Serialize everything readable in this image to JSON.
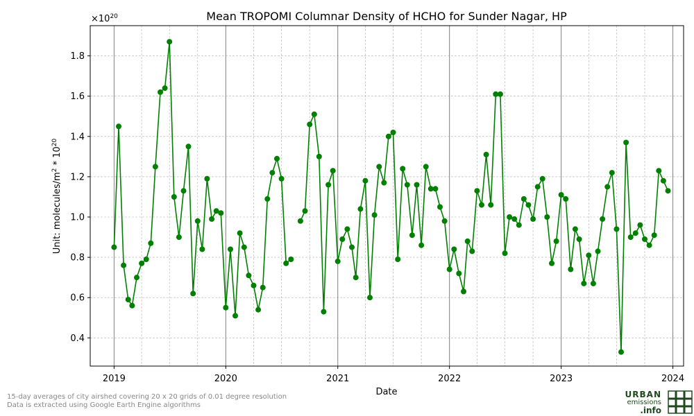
{
  "chart_data": {
    "type": "line",
    "title": "Mean TROPOMI Columnar Density of HCHO for Sunder Nagar, HP",
    "xlabel": "Date",
    "ylabel_main": "Unit: molecules/m",
    "ylabel_sup1": "2",
    "ylabel_mid": " * 10",
    "ylabel_sup2": "20",
    "offset_base": "×10",
    "offset_exp": "20",
    "xlim": [
      "2018-10-15",
      "2024-02-05"
    ],
    "ylim": [
      0.26,
      1.95
    ],
    "xticks": [
      {
        "date": "2019-01-01",
        "label": "2019"
      },
      {
        "date": "2020-01-01",
        "label": "2020"
      },
      {
        "date": "2021-01-01",
        "label": "2021"
      },
      {
        "date": "2022-01-01",
        "label": "2022"
      },
      {
        "date": "2023-01-01",
        "label": "2023"
      },
      {
        "date": "2024-01-01",
        "label": "2024"
      }
    ],
    "yticks": [
      {
        "value": 0.4,
        "label": "0.4"
      },
      {
        "value": 0.6,
        "label": "0.6"
      },
      {
        "value": 0.8,
        "label": "0.8"
      },
      {
        "value": 1.0,
        "label": "1.0"
      },
      {
        "value": 1.2,
        "label": "1.2"
      },
      {
        "value": 1.4,
        "label": "1.4"
      },
      {
        "value": 1.6,
        "label": "1.6"
      },
      {
        "value": 1.8,
        "label": "1.8"
      }
    ],
    "grid": true,
    "color": "#008000",
    "series": [
      {
        "segments": [
          [
            [
              "2019-01-01",
              0.85
            ],
            [
              "2019-01-16",
              1.45
            ],
            [
              "2019-02-01",
              0.76
            ],
            [
              "2019-02-16",
              0.59
            ],
            [
              "2019-03-01",
              0.56
            ],
            [
              "2019-03-16",
              0.7
            ],
            [
              "2019-04-01",
              0.77
            ],
            [
              "2019-04-16",
              0.79
            ],
            [
              "2019-05-01",
              0.87
            ],
            [
              "2019-05-16",
              1.25
            ],
            [
              "2019-06-01",
              1.62
            ],
            [
              "2019-06-16",
              1.64
            ],
            [
              "2019-07-01",
              1.87
            ],
            [
              "2019-07-16",
              1.1
            ],
            [
              "2019-08-01",
              0.9
            ],
            [
              "2019-08-16",
              1.13
            ],
            [
              "2019-09-01",
              1.35
            ],
            [
              "2019-09-16",
              0.62
            ],
            [
              "2019-10-01",
              0.98
            ],
            [
              "2019-10-16",
              0.84
            ],
            [
              "2019-11-01",
              1.19
            ],
            [
              "2019-11-16",
              0.99
            ],
            [
              "2019-12-01",
              1.03
            ],
            [
              "2019-12-16",
              1.02
            ],
            [
              "2020-01-01",
              0.55
            ],
            [
              "2020-01-16",
              0.84
            ],
            [
              "2020-02-01",
              0.51
            ],
            [
              "2020-02-16",
              0.92
            ],
            [
              "2020-03-01",
              0.85
            ],
            [
              "2020-03-16",
              0.71
            ],
            [
              "2020-04-01",
              0.66
            ],
            [
              "2020-04-16",
              0.54
            ],
            [
              "2020-05-01",
              0.65
            ],
            [
              "2020-05-16",
              1.09
            ],
            [
              "2020-06-01",
              1.22
            ],
            [
              "2020-06-16",
              1.29
            ],
            [
              "2020-07-01",
              1.19
            ],
            [
              "2020-07-16",
              0.77
            ],
            [
              "2020-08-01",
              0.79
            ]
          ],
          [
            [
              "2020-09-01",
              0.98
            ],
            [
              "2020-09-16",
              1.03
            ],
            [
              "2020-10-01",
              1.46
            ],
            [
              "2020-10-16",
              1.51
            ],
            [
              "2020-11-01",
              1.3
            ],
            [
              "2020-11-16",
              0.53
            ],
            [
              "2020-12-01",
              1.16
            ],
            [
              "2020-12-16",
              1.23
            ],
            [
              "2021-01-01",
              0.78
            ],
            [
              "2021-01-16",
              0.89
            ],
            [
              "2021-02-01",
              0.94
            ],
            [
              "2021-02-16",
              0.85
            ],
            [
              "2021-03-01",
              0.7
            ],
            [
              "2021-03-16",
              1.04
            ],
            [
              "2021-04-01",
              1.18
            ],
            [
              "2021-04-16",
              0.6
            ],
            [
              "2021-05-01",
              1.01
            ],
            [
              "2021-05-16",
              1.25
            ],
            [
              "2021-06-01",
              1.17
            ],
            [
              "2021-06-16",
              1.4
            ],
            [
              "2021-07-01",
              1.42
            ],
            [
              "2021-07-16",
              0.79
            ],
            [
              "2021-08-01",
              1.24
            ],
            [
              "2021-08-16",
              1.16
            ],
            [
              "2021-09-01",
              0.91
            ],
            [
              "2021-09-16",
              1.16
            ],
            [
              "2021-10-01",
              0.86
            ],
            [
              "2021-10-16",
              1.25
            ],
            [
              "2021-11-01",
              1.14
            ],
            [
              "2021-11-16",
              1.14
            ],
            [
              "2021-12-01",
              1.05
            ],
            [
              "2021-12-16",
              0.98
            ],
            [
              "2022-01-01",
              0.74
            ],
            [
              "2022-01-16",
              0.84
            ],
            [
              "2022-02-01",
              0.72
            ],
            [
              "2022-02-16",
              0.63
            ],
            [
              "2022-03-01",
              0.88
            ],
            [
              "2022-03-16",
              0.83
            ],
            [
              "2022-04-01",
              1.13
            ],
            [
              "2022-04-16",
              1.06
            ],
            [
              "2022-05-01",
              1.31
            ],
            [
              "2022-05-16",
              1.06
            ],
            [
              "2022-06-01",
              1.61
            ],
            [
              "2022-06-16",
              1.61
            ],
            [
              "2022-07-01",
              0.82
            ],
            [
              "2022-07-16",
              1.0
            ],
            [
              "2022-08-01",
              0.99
            ],
            [
              "2022-08-16",
              0.96
            ],
            [
              "2022-09-01",
              1.09
            ],
            [
              "2022-09-16",
              1.06
            ],
            [
              "2022-10-01",
              0.99
            ],
            [
              "2022-10-16",
              1.15
            ],
            [
              "2022-11-01",
              1.19
            ],
            [
              "2022-11-16",
              1.0
            ],
            [
              "2022-12-01",
              0.77
            ],
            [
              "2022-12-16",
              0.88
            ],
            [
              "2023-01-01",
              1.11
            ],
            [
              "2023-01-16",
              1.09
            ],
            [
              "2023-02-01",
              0.74
            ],
            [
              "2023-02-16",
              0.94
            ],
            [
              "2023-03-01",
              0.89
            ],
            [
              "2023-03-16",
              0.67
            ],
            [
              "2023-04-01",
              0.81
            ],
            [
              "2023-04-16",
              0.67
            ],
            [
              "2023-05-01",
              0.83
            ],
            [
              "2023-05-16",
              0.99
            ],
            [
              "2023-06-01",
              1.15
            ],
            [
              "2023-06-16",
              1.22
            ],
            [
              "2023-07-01",
              0.94
            ],
            [
              "2023-07-16",
              0.33
            ],
            [
              "2023-08-01",
              1.37
            ],
            [
              "2023-08-16",
              0.9
            ],
            [
              "2023-09-01",
              0.92
            ],
            [
              "2023-09-16",
              0.96
            ],
            [
              "2023-10-01",
              0.89
            ],
            [
              "2023-10-16",
              0.86
            ],
            [
              "2023-11-01",
              0.91
            ],
            [
              "2023-11-16",
              1.23
            ],
            [
              "2023-12-01",
              1.18
            ],
            [
              "2023-12-16",
              1.13
            ]
          ]
        ]
      }
    ]
  },
  "footnotes": {
    "line1": "15-day averages of city airshed covering 20 x 20 grids of 0.01 degree resolution",
    "line2": "Data is extracted using Google Earth Engine algorithms"
  },
  "logo": {
    "urban": "URBAN",
    "emissions": "emissions",
    "info": ".info"
  }
}
